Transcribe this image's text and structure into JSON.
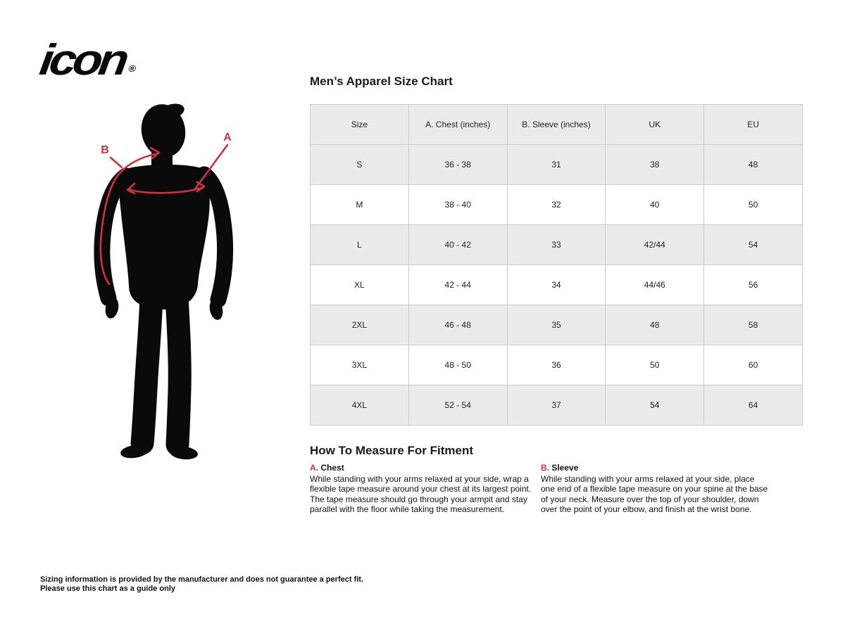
{
  "colors": {
    "accent_red": "#cc3340",
    "row_gray": "#ebebeb",
    "border_gray": "#cbcbcb",
    "ink": "#0a0a0a"
  },
  "logo": {
    "text": "icon",
    "registered": "®"
  },
  "figure": {
    "label_a": "A",
    "label_b": "B"
  },
  "size_chart": {
    "title": "Men’s Apparel Size Chart",
    "columns": [
      "Size",
      "A. Chest (inches)",
      "B. Sleeve (inches)",
      "UK",
      "EU"
    ],
    "rows": [
      [
        "S",
        "36 - 38",
        "31",
        "38",
        "48"
      ],
      [
        "M",
        "38 - 40",
        "32",
        "40",
        "50"
      ],
      [
        "L",
        "40 - 42",
        "33",
        "42/44",
        "54"
      ],
      [
        "XL",
        "42 - 44",
        "34",
        "44/46",
        "56"
      ],
      [
        "2XL",
        "46 - 48",
        "35",
        "48",
        "58"
      ],
      [
        "3XL",
        "48 - 50",
        "36",
        "50",
        "60"
      ],
      [
        "4XL",
        "52 - 54",
        "37",
        "54",
        "64"
      ]
    ]
  },
  "how_to_measure": {
    "title": "How To Measure For Fitment",
    "sections": [
      {
        "letter": "A.",
        "name": "Chest",
        "text": "While standing with your arms relaxed at your side, wrap a flexible tape measure around your chest at its largest point. The tape measure should go through your armpit and stay parallel with the floor while taking the measurement."
      },
      {
        "letter": "B.",
        "name": "Sleeve",
        "text": "While standing with your arms relaxed at your side, place one end of a flexible tape measure on your spine at the base of your neck. Measure over the top of your shoulder, down over the point of your elbow, and finish at the wrist bone."
      }
    ]
  },
  "disclaimer": {
    "line1": "Sizing information is provided by the manufacturer and does not guarantee a perfect fit.",
    "line2": "Please use this chart as a guide only"
  }
}
